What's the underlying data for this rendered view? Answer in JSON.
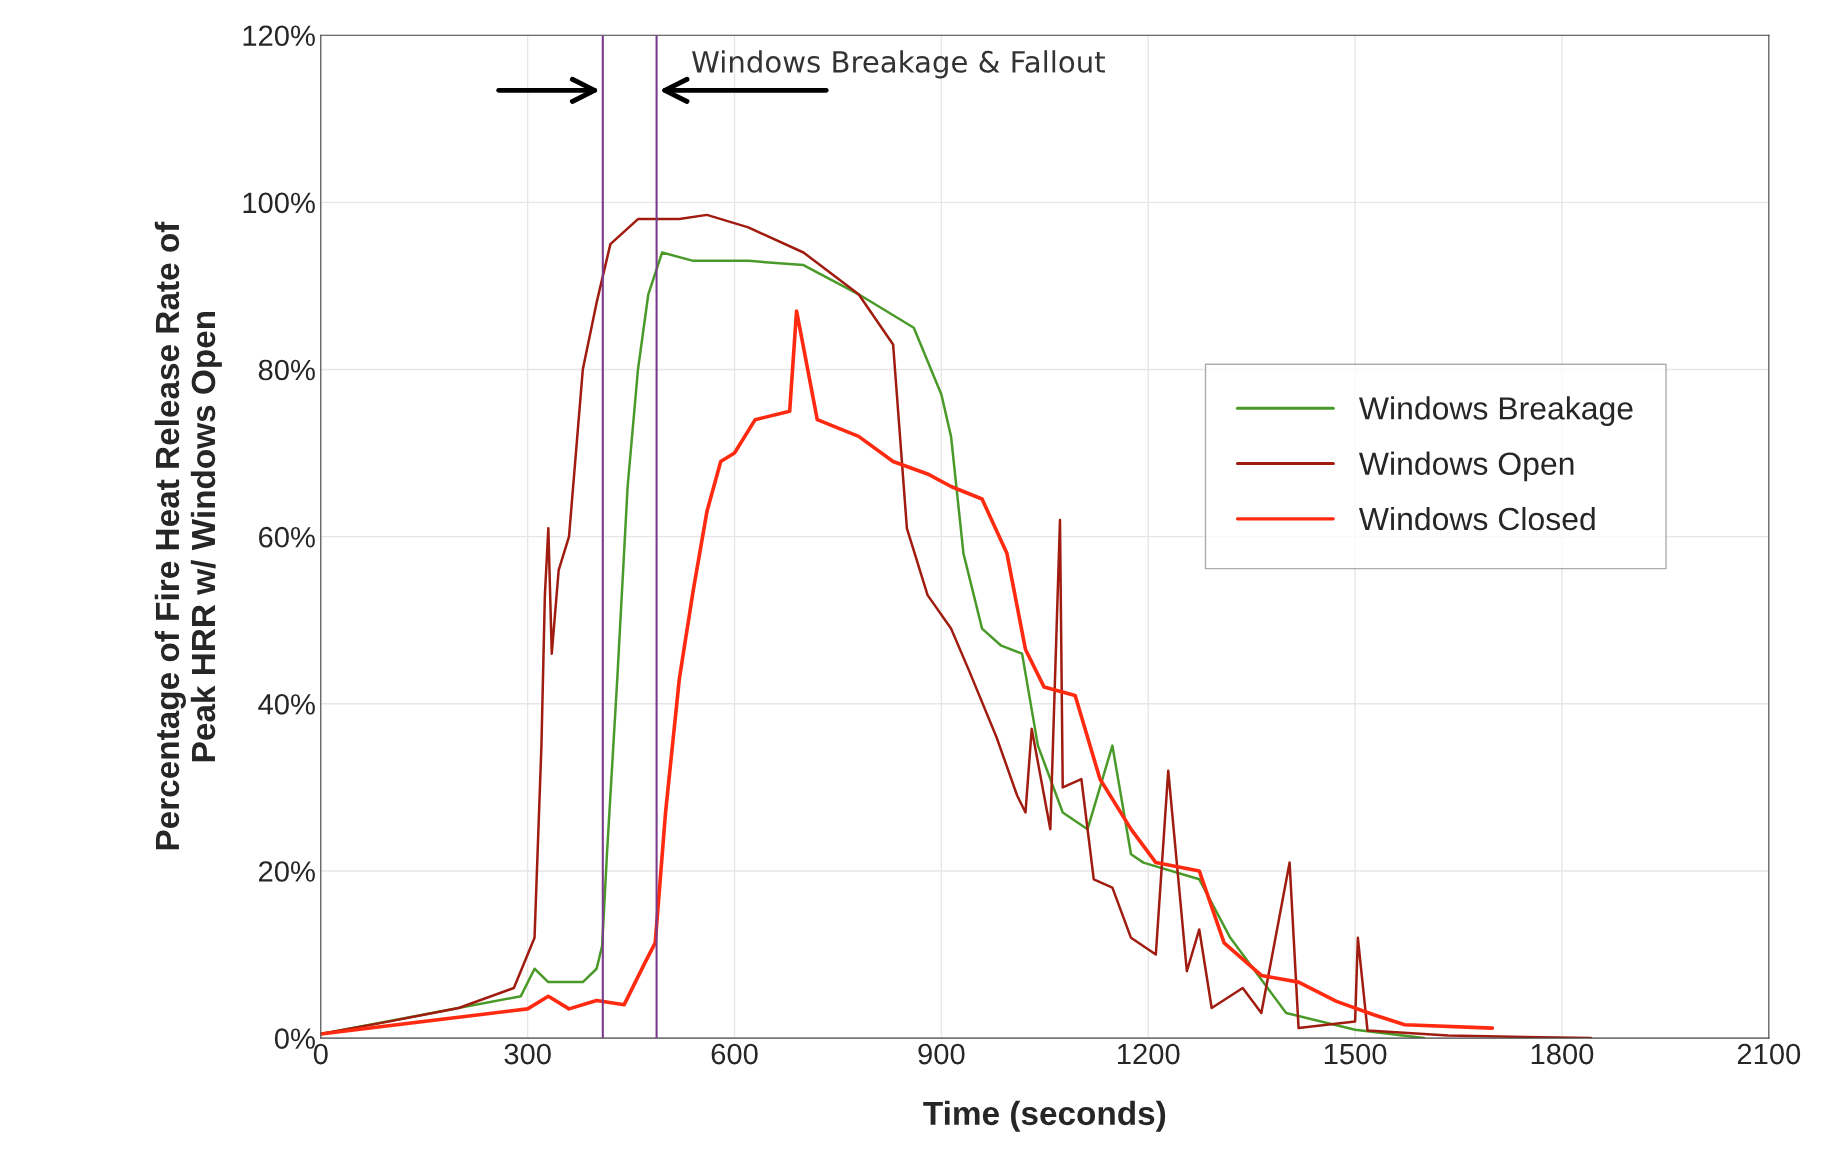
{
  "chart_data": {
    "type": "line",
    "xlabel": "Time (seconds)",
    "ylabel": "Percentage of Fire Heat Release Rate of\nPeak HRR w/ Windows Open",
    "xlim": [
      0,
      2100
    ],
    "xticks": [
      0,
      300,
      600,
      900,
      1200,
      1500,
      1800,
      2100
    ],
    "ylim": [
      0,
      120
    ],
    "yticks": [
      {
        "value": 0,
        "label": "0%"
      },
      {
        "value": 20,
        "label": "20%"
      },
      {
        "value": 40,
        "label": "40%"
      },
      {
        "value": 60,
        "label": "60%"
      },
      {
        "value": 80,
        "label": "80%"
      },
      {
        "value": 100,
        "label": "100%"
      },
      {
        "value": 120,
        "label": "120%"
      }
    ],
    "grid": true,
    "legend": "right",
    "series": [
      {
        "name": "Windows Breakage",
        "color": "#4a9a2a",
        "x": [
          0,
          200,
          290,
          310,
          330,
          380,
          400,
          408,
          415,
          430,
          445,
          460,
          475,
          495,
          540,
          620,
          700,
          780,
          860,
          900,
          914,
          932,
          959,
          986,
          1017,
          1040,
          1076,
          1112,
          1148,
          1175,
          1193,
          1274,
          1319,
          1400,
          1500,
          1600
        ],
        "values": [
          0.5,
          null,
          5,
          8.3,
          6.7,
          6.7,
          8.3,
          11,
          22,
          43,
          66,
          80,
          89,
          94,
          93,
          93,
          92.5,
          89,
          85,
          77,
          72,
          58,
          49,
          47,
          46,
          35,
          27,
          25,
          35,
          22,
          21,
          19,
          12,
          3,
          1,
          0
        ]
      },
      {
        "name": "Windows Open",
        "color": "#a01c10",
        "x": [
          0,
          100,
          200,
          280,
          310,
          320,
          325,
          330,
          335,
          345,
          360,
          380,
          400,
          420,
          460,
          520,
          560,
          620,
          700,
          780,
          830,
          850,
          880,
          914,
          940,
          980,
          1010,
          1022,
          1031,
          1058,
          1072,
          1076,
          1103,
          1121,
          1148,
          1175,
          1211,
          1229,
          1256,
          1274,
          1292,
          1337,
          1364,
          1405,
          1418,
          1500,
          1504,
          1518,
          1635,
          1842
        ],
        "values": [
          0.5,
          2,
          3.6,
          6,
          12,
          35,
          53,
          61,
          46,
          56,
          60,
          80,
          88,
          95,
          98,
          98,
          98.5,
          97,
          94,
          89,
          83,
          61,
          53,
          49,
          44,
          36,
          29,
          27,
          37,
          25,
          62,
          30,
          31,
          19,
          18,
          12,
          10,
          32,
          8,
          13,
          3.6,
          6,
          3,
          21,
          1.2,
          2,
          12,
          0.9,
          0.3,
          0
        ]
      },
      {
        "name": "Windows Closed",
        "color": "#ff2a10",
        "x": [
          0,
          200,
          300,
          330,
          360,
          400,
          440,
          470,
          485,
          500,
          520,
          540,
          560,
          580,
          600,
          630,
          680,
          690,
          720,
          780,
          830,
          880,
          914,
          959,
          995,
          1022,
          1049,
          1094,
          1130,
          1175,
          1211,
          1274,
          1310,
          1364,
          1418,
          1473,
          1527,
          1572,
          1699
        ],
        "values": [
          0.5,
          2.5,
          3.5,
          5,
          3.5,
          4.5,
          4,
          9,
          11.4,
          27,
          43,
          53.5,
          63,
          69,
          70,
          74,
          75,
          87,
          74,
          72,
          69,
          67.5,
          66,
          64.5,
          58,
          46.5,
          42,
          41,
          31,
          25,
          21,
          20,
          11.4,
          7.5,
          6.7,
          4.4,
          2.8,
          1.6,
          1.2
        ]
      }
    ],
    "ref_lines": [
      {
        "axis": "x",
        "value": 409,
        "color": "#7a3a8a"
      },
      {
        "axis": "x",
        "value": 487,
        "color": "#7a3a8a"
      }
    ],
    "annotations": [
      "Windows Breakage & Fallout"
    ]
  }
}
